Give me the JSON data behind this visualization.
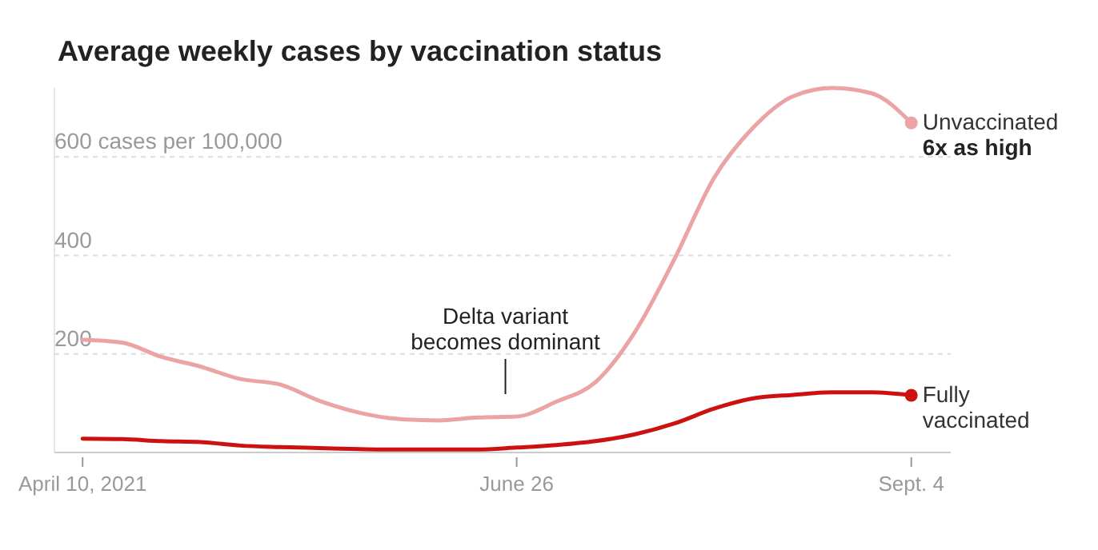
{
  "chart_data": {
    "type": "line",
    "title": "Average weekly cases by vaccination status",
    "x": [
      "2021-04-10",
      "2021-04-17",
      "2021-04-24",
      "2021-05-01",
      "2021-05-08",
      "2021-05-15",
      "2021-05-22",
      "2021-05-29",
      "2021-06-05",
      "2021-06-12",
      "2021-06-19",
      "2021-06-26",
      "2021-07-03",
      "2021-07-10",
      "2021-07-17",
      "2021-07-24",
      "2021-07-31",
      "2021-08-07",
      "2021-08-14",
      "2021-08-21",
      "2021-08-28",
      "2021-09-04"
    ],
    "series": [
      {
        "name": "Unvaccinated",
        "color": "#eba3a3",
        "values": [
          229,
          223,
          194,
          174,
          149,
          138,
          105,
          81,
          68,
          65,
          71,
          73,
          103,
          143,
          245,
          393,
          557,
          660,
          723,
          740,
          729,
          669
        ]
      },
      {
        "name": "Fully vaccinated",
        "color": "#cc1111",
        "values": [
          28,
          27,
          23,
          21,
          14,
          11,
          9,
          7,
          6,
          6,
          6,
          10,
          15,
          23,
          37,
          59,
          89,
          110,
          117,
          122,
          122,
          116
        ]
      }
    ],
    "xlim": [
      "2021-04-05",
      "2021-09-11"
    ],
    "xticks": [
      {
        "value": "2021-04-10",
        "label": "April 10, 2021"
      },
      {
        "value": "2021-06-26",
        "label": "June 26"
      },
      {
        "value": "2021-09-04",
        "label": "Sept. 4"
      }
    ],
    "ylim": [
      0,
      740
    ],
    "yticks": [
      {
        "value": 0,
        "label": null
      },
      200,
      400,
      {
        "value": 600,
        "label": "600 cases per 100,000"
      }
    ],
    "grid": "y",
    "annotations": [
      {
        "text": "Delta variant becomes dominant",
        "x": "2021-06-24",
        "y": 73
      },
      {
        "text": "6x as high",
        "x": "2021-09-04",
        "y": 669
      }
    ]
  }
}
